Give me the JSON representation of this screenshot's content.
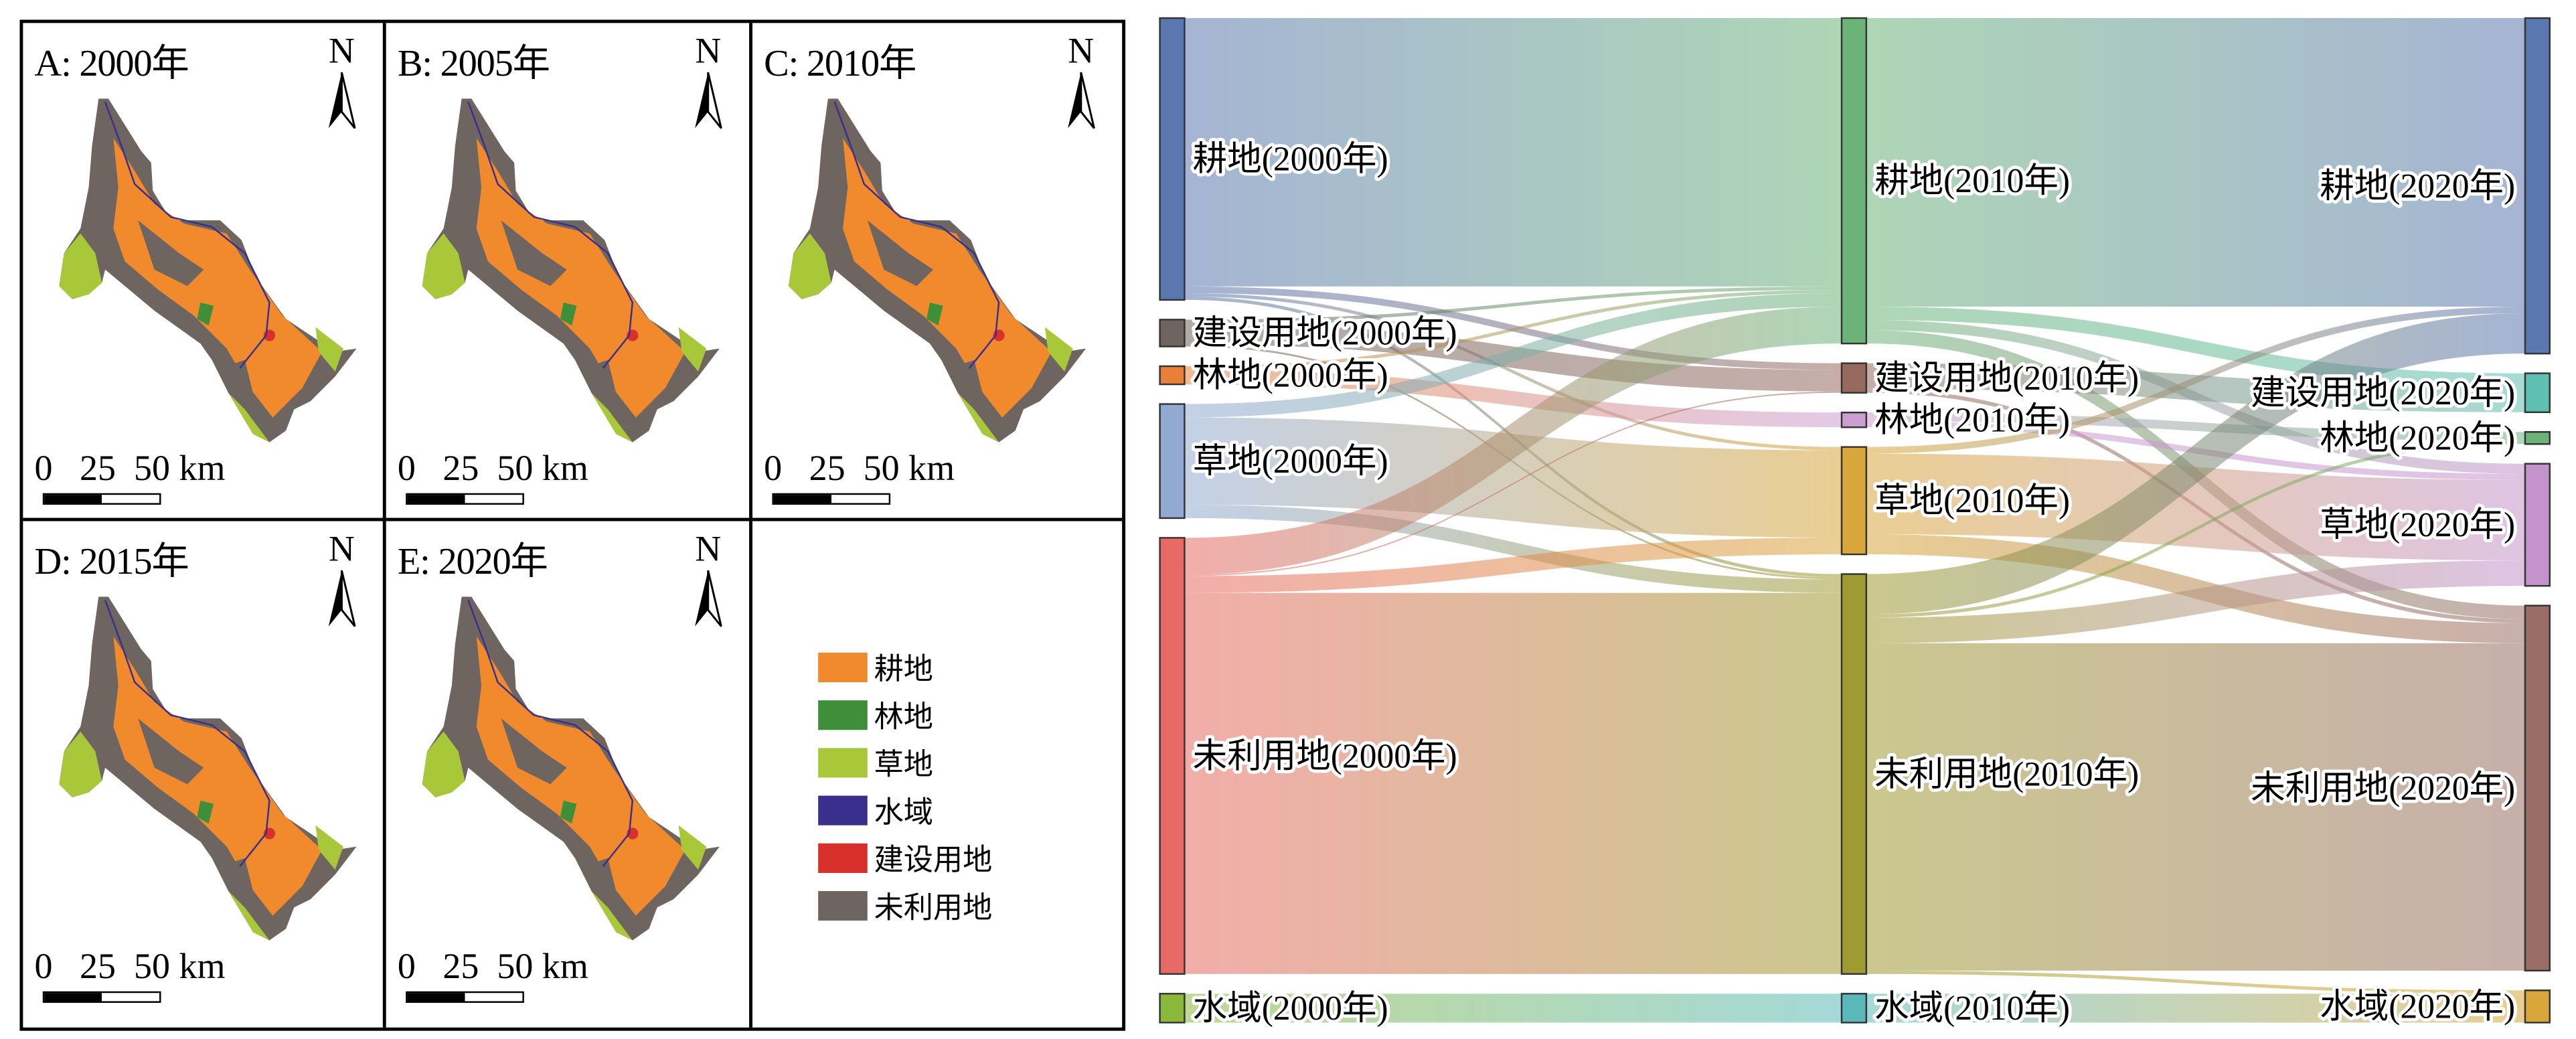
{
  "maps": [
    {
      "title": "A: 2000年"
    },
    {
      "title": "B: 2005年"
    },
    {
      "title": "C: 2010年"
    },
    {
      "title": "D: 2015年"
    },
    {
      "title": "E: 2020年"
    }
  ],
  "north_label": "N",
  "scale_label": "0   25  50 km",
  "legend": [
    {
      "label": "耕地",
      "color": "#f08a2c"
    },
    {
      "label": "林地",
      "color": "#3f8f3a"
    },
    {
      "label": "草地",
      "color": "#a8c83a"
    },
    {
      "label": "水域",
      "color": "#3a2f8c"
    },
    {
      "label": "建设用地",
      "color": "#d8302a"
    },
    {
      "label": "未利用地",
      "color": "#6e6460"
    }
  ],
  "chart_data": {
    "type": "sankey",
    "columns": [
      "2000年",
      "2010年",
      "2020年"
    ],
    "nodes": [
      {
        "id": "c0_0",
        "col": 0,
        "label": "耕地(2000年)",
        "color": "#5b77b0"
      },
      {
        "id": "c0_1",
        "col": 0,
        "label": "建设用地(2000年)",
        "color": "#6e6460"
      },
      {
        "id": "c0_2",
        "col": 0,
        "label": "林地(2000年)",
        "color": "#e8803a"
      },
      {
        "id": "c0_3",
        "col": 0,
        "label": "草地(2000年)",
        "color": "#92a9d1"
      },
      {
        "id": "c0_4",
        "col": 0,
        "label": "未利用地(2000年)",
        "color": "#e86a64"
      },
      {
        "id": "c0_5",
        "col": 0,
        "label": "水域(2000年)",
        "color": "#8ab83a"
      },
      {
        "id": "c1_0",
        "col": 1,
        "label": "耕地(2010年)",
        "color": "#6cb37a"
      },
      {
        "id": "c1_1",
        "col": 1,
        "label": "建设用地(2010年)",
        "color": "#976a60"
      },
      {
        "id": "c1_2",
        "col": 1,
        "label": "林地(2010年)",
        "color": "#cc9ed0"
      },
      {
        "id": "c1_3",
        "col": 1,
        "label": "草地(2010年)",
        "color": "#d8a63a"
      },
      {
        "id": "c1_4",
        "col": 1,
        "label": "未利用地(2010年)",
        "color": "#a09a32"
      },
      {
        "id": "c1_5",
        "col": 1,
        "label": "水域(2010年)",
        "color": "#5ab8b8"
      },
      {
        "id": "c2_0",
        "col": 2,
        "label": "耕地(2020年)",
        "color": "#5b77b0"
      },
      {
        "id": "c2_1",
        "col": 2,
        "label": "建设用地(2020年)",
        "color": "#5fbfb0"
      },
      {
        "id": "c2_2",
        "col": 2,
        "label": "林地(2020年)",
        "color": "#6cb37a"
      },
      {
        "id": "c2_3",
        "col": 2,
        "label": "草地(2020年)",
        "color": "#c493cc"
      },
      {
        "id": "c2_4",
        "col": 2,
        "label": "未利用地(2020年)",
        "color": "#9a6e66"
      },
      {
        "id": "c2_5",
        "col": 2,
        "label": "水域(2020年)",
        "color": "#d8a63a"
      }
    ],
    "links": [
      {
        "source": "c0_0",
        "target": "c1_0",
        "value": 40
      },
      {
        "source": "c0_0",
        "target": "c1_1",
        "value": 1
      },
      {
        "source": "c0_0",
        "target": "c1_3",
        "value": 0.5
      },
      {
        "source": "c0_0",
        "target": "c1_4",
        "value": 0.5
      },
      {
        "source": "c0_1",
        "target": "c1_0",
        "value": 0.5
      },
      {
        "source": "c0_1",
        "target": "c1_1",
        "value": 3.2
      },
      {
        "source": "c0_1",
        "target": "c1_4",
        "value": 0.3
      },
      {
        "source": "c0_2",
        "target": "c1_0",
        "value": 0.5
      },
      {
        "source": "c0_2",
        "target": "c1_2",
        "value": 2.2
      },
      {
        "source": "c0_3",
        "target": "c1_0",
        "value": 2
      },
      {
        "source": "c0_3",
        "target": "c1_3",
        "value": 13
      },
      {
        "source": "c0_3",
        "target": "c1_4",
        "value": 2
      },
      {
        "source": "c0_4",
        "target": "c1_0",
        "value": 5.5
      },
      {
        "source": "c0_4",
        "target": "c1_1",
        "value": 0.2
      },
      {
        "source": "c0_4",
        "target": "c1_3",
        "value": 2.5
      },
      {
        "source": "c0_4",
        "target": "c1_4",
        "value": 56.8
      },
      {
        "source": "c0_5",
        "target": "c1_5",
        "value": 4.3
      },
      {
        "source": "c1_0",
        "target": "c2_0",
        "value": 43
      },
      {
        "source": "c1_0",
        "target": "c2_1",
        "value": 2
      },
      {
        "source": "c1_0",
        "target": "c2_3",
        "value": 1.5
      },
      {
        "source": "c1_0",
        "target": "c2_4",
        "value": 2
      },
      {
        "source": "c1_1",
        "target": "c2_1",
        "value": 3.8
      },
      {
        "source": "c1_1",
        "target": "c2_4",
        "value": 0.6
      },
      {
        "source": "c1_2",
        "target": "c2_2",
        "value": 1.3
      },
      {
        "source": "c1_2",
        "target": "c2_3",
        "value": 0.9
      },
      {
        "source": "c1_3",
        "target": "c2_0",
        "value": 1
      },
      {
        "source": "c1_3",
        "target": "c2_3",
        "value": 12
      },
      {
        "source": "c1_3",
        "target": "c2_4",
        "value": 3
      },
      {
        "source": "c1_4",
        "target": "c2_0",
        "value": 6
      },
      {
        "source": "c1_4",
        "target": "c2_2",
        "value": 0.5
      },
      {
        "source": "c1_4",
        "target": "c2_3",
        "value": 3.8
      },
      {
        "source": "c1_4",
        "target": "c2_4",
        "value": 48.8
      },
      {
        "source": "c1_4",
        "target": "c2_5",
        "value": 0.5
      },
      {
        "source": "c1_5",
        "target": "c2_5",
        "value": 4.3
      }
    ]
  }
}
